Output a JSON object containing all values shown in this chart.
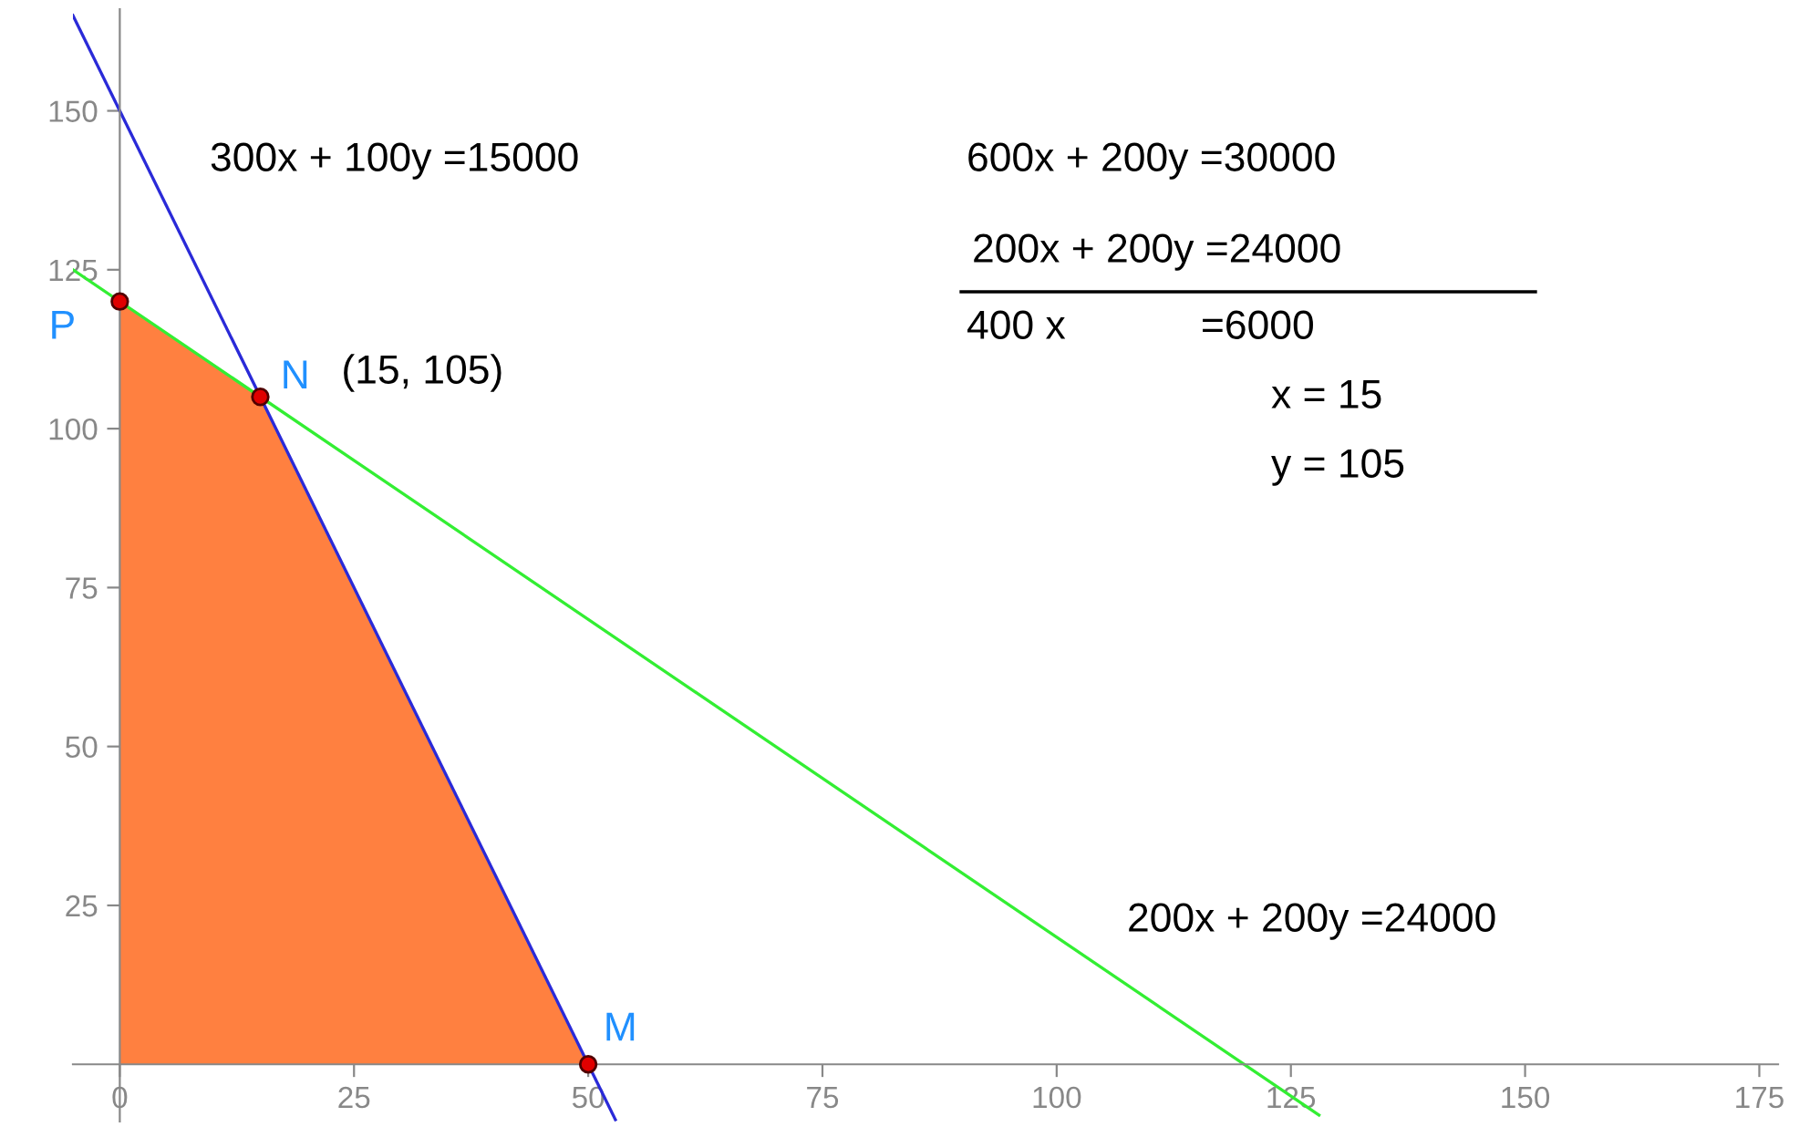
{
  "chart_data": {
    "type": "line",
    "xlim": [
      -5,
      177
    ],
    "ylim": [
      -9,
      166
    ],
    "xticks": [
      0,
      25,
      50,
      75,
      100,
      125,
      150,
      175
    ],
    "yticks": [
      25,
      50,
      75,
      100,
      125,
      150
    ],
    "grid": false,
    "legend": false,
    "series": [
      {
        "type": "area",
        "color": "#ff8040",
        "x": [
          0,
          0,
          15,
          50
        ],
        "values": [
          0,
          120,
          105,
          0
        ]
      },
      {
        "color": "#2a2ad8",
        "x": [
          -5,
          52.9
        ],
        "values": [
          165,
          -8.7
        ]
      },
      {
        "color": "#33ee33",
        "x": [
          -5,
          128
        ],
        "values": [
          125,
          -8
        ]
      },
      {
        "type": "scatter",
        "color": "#e00000",
        "marker": "circle",
        "x": [
          0,
          15,
          50
        ],
        "values": [
          120,
          105,
          0
        ]
      }
    ],
    "annotations": [
      {
        "text": "P",
        "x": 0,
        "y": 120
      },
      {
        "text": "N",
        "x": 15,
        "y": 105
      },
      {
        "text": "(15, 105)",
        "x": 15,
        "y": 105
      },
      {
        "text": "M",
        "x": 50,
        "y": 0
      },
      "300x + 100y =15000",
      "200x + 200y =24000",
      "600x + 200y =30000",
      "200x + 200y =24000",
      "400 x            =6000",
      "x = 15",
      "y = 105"
    ]
  }
}
